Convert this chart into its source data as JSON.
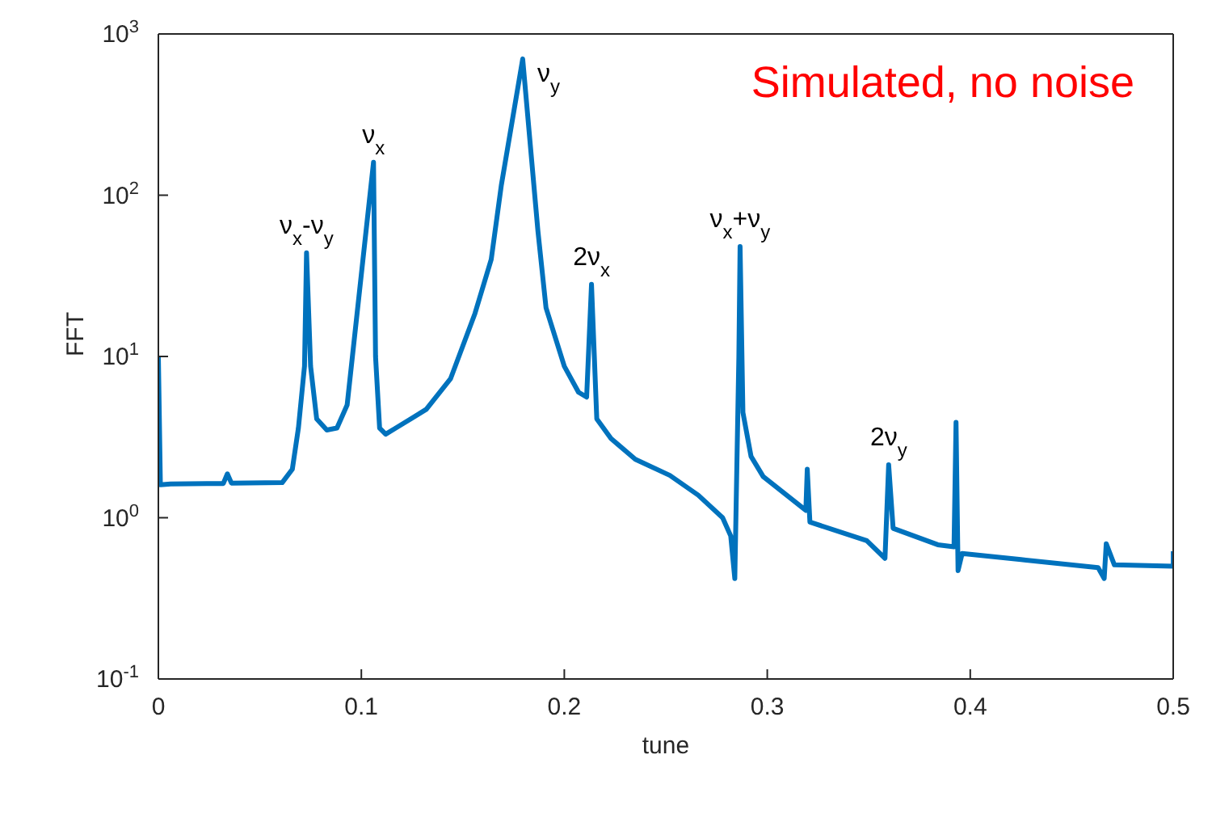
{
  "chart_data": {
    "type": "line",
    "xlabel": "tune",
    "ylabel": "FFT",
    "log": "y",
    "grid": false,
    "legend": false,
    "marker": "none",
    "line_style": "solid",
    "xlim": [
      0,
      0.5
    ],
    "xticks": [
      0,
      0.1,
      0.2,
      0.3,
      0.4,
      0.5
    ],
    "ylim": [
      0.1,
      1000
    ],
    "yticks": [
      {
        "value": 0.1,
        "label": "10$^{-1}$"
      },
      {
        "value": 1,
        "label": "10$^{0}$"
      },
      {
        "value": 10,
        "label": "10$^{1}$"
      },
      {
        "value": 100,
        "label": "10$^{2}$"
      },
      {
        "value": 1000,
        "label": "10$^{3}$"
      }
    ],
    "series": [
      {
        "color": "#0072bd",
        "x": [
          0,
          0.001,
          0.006,
          0.032,
          0.034,
          0.036,
          0.061,
          0.066,
          0.069,
          0.072,
          0.073,
          0.075,
          0.078,
          0.083,
          0.088,
          0.093,
          0.106,
          0.107,
          0.109,
          0.112,
          0.117,
          0.132,
          0.144,
          0.156,
          0.164,
          0.169,
          0.1795,
          0.187,
          0.191,
          0.2,
          0.207,
          0.211,
          0.2134,
          0.216,
          0.223,
          0.235,
          0.252,
          0.266,
          0.278,
          0.282,
          0.284,
          0.286,
          0.2866,
          0.288,
          0.292,
          0.298,
          0.319,
          0.3197,
          0.321,
          0.349,
          0.358,
          0.3598,
          0.362,
          0.384,
          0.392,
          0.393,
          0.394,
          0.396,
          0.425,
          0.463,
          0.466,
          0.467,
          0.471,
          0.5,
          0.5
        ],
        "values": [
          10,
          1.6,
          1.62,
          1.63,
          1.87,
          1.64,
          1.65,
          2.0,
          3.6,
          8.7,
          44,
          8.7,
          4.1,
          3.5,
          3.6,
          5,
          160,
          10,
          3.6,
          3.3,
          3.6,
          4.7,
          7.3,
          18.5,
          40,
          116,
          700,
          60,
          20,
          8.7,
          6.0,
          5.6,
          28,
          4.1,
          3.1,
          2.3,
          1.83,
          1.38,
          1.0,
          0.77,
          0.42,
          10,
          48,
          4.5,
          2.4,
          1.8,
          1.11,
          2.0,
          0.94,
          0.72,
          0.56,
          2.13,
          0.86,
          0.68,
          0.66,
          3.9,
          0.47,
          0.6,
          0.55,
          0.49,
          0.42,
          0.69,
          0.51,
          0.5,
          0.62
        ]
      }
    ],
    "annotations": [
      {
        "text": "ν$_{x}$-ν$_{y}$",
        "x": 0.073,
        "y": 44
      },
      {
        "text": "ν$_{x}$",
        "x": 0.106,
        "y": 160
      },
      {
        "text": "ν$_{y}$",
        "x": 0.1795,
        "y": 700
      },
      {
        "text": "2ν$_{x}$",
        "x": 0.2134,
        "y": 28
      },
      {
        "text": "ν$_{x}$+ν$_{y}$",
        "x": 0.2866,
        "y": 48
      },
      {
        "text": "2ν$_{y}$",
        "x": 0.3598,
        "y": 2.13
      },
      "Simulated, no noise"
    ]
  }
}
